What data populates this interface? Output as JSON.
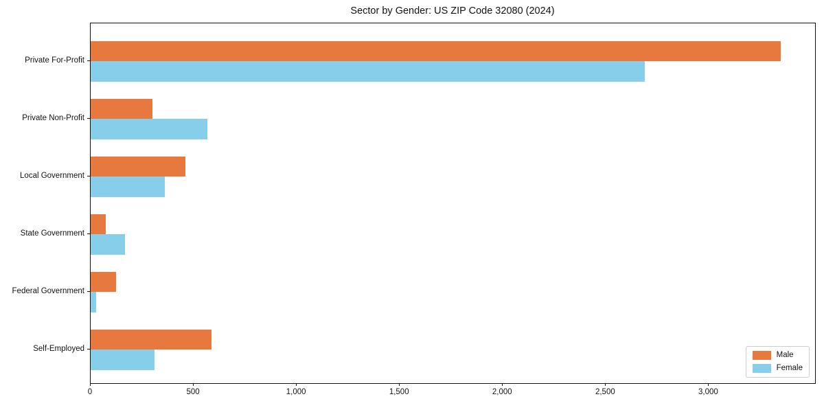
{
  "chart_data": {
    "type": "bar",
    "orientation": "horizontal",
    "title": "Sector by Gender: US ZIP Code 32080 (2024)",
    "categories": [
      "Private For-Profit",
      "Private Non-Profit",
      "Local Government",
      "State Government",
      "Federal Government",
      "Self-Employed"
    ],
    "series": [
      {
        "name": "Male",
        "color": "#e8793e",
        "values": [
          3347,
          300,
          460,
          72,
          122,
          586
        ]
      },
      {
        "name": "Female",
        "color": "#87ceeb",
        "values": [
          2690,
          567,
          360,
          166,
          28,
          311
        ]
      }
    ],
    "xlim": [
      0,
      3515
    ],
    "x_ticks": [
      0,
      500,
      1000,
      1500,
      2000,
      2500,
      3000
    ],
    "x_tick_labels": [
      "0",
      "500",
      "1,000",
      "1,500",
      "2,000",
      "2,500",
      "3,000"
    ],
    "ylabel": "",
    "xlabel": "",
    "grid": false,
    "legend_position": "lower right",
    "frame_color": "#111111",
    "background_color": "#ffffff"
  }
}
